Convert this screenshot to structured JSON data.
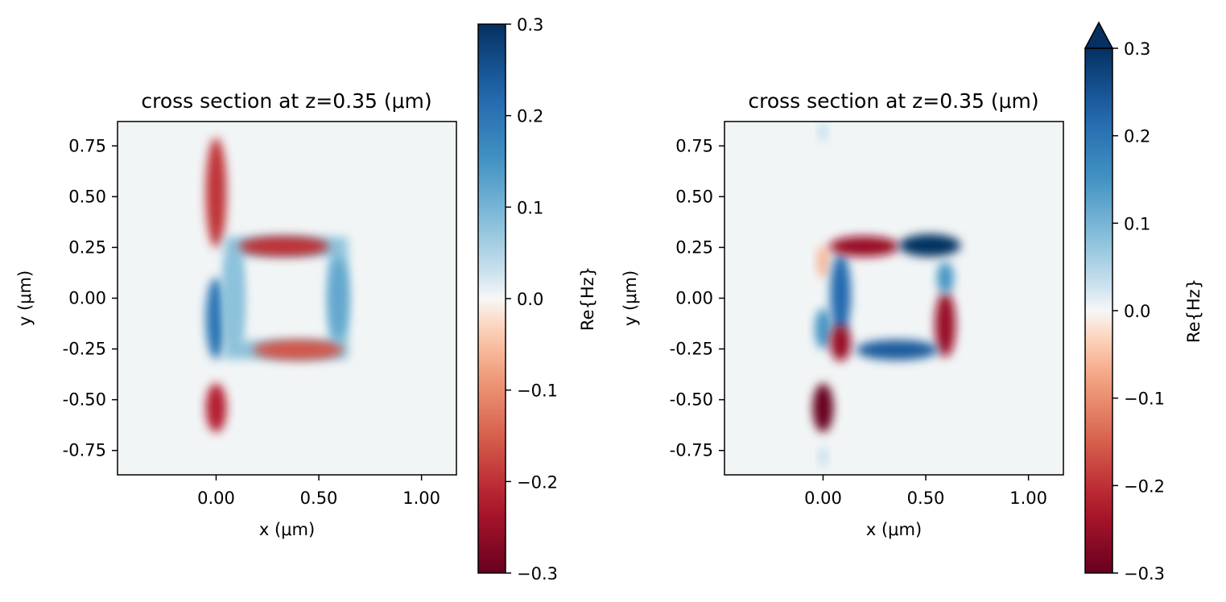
{
  "chart_data": [
    {
      "type": "heatmap",
      "title": "cross section at z=0.35 (μm)",
      "xlabel": "x (μm)",
      "ylabel": "y (μm)",
      "xlim": [
        -0.48,
        1.17
      ],
      "ylim": [
        -0.87,
        0.87
      ],
      "x_ticks": [
        0.0,
        0.5,
        1.0
      ],
      "x_tick_labels": [
        "0.00",
        "0.50",
        "1.00"
      ],
      "y_ticks": [
        0.75,
        0.5,
        0.25,
        0.0,
        -0.25,
        -0.5,
        -0.75
      ],
      "y_tick_labels": [
        "0.75",
        "0.50",
        "0.25",
        "0.00",
        "-0.25",
        "-0.50",
        "-0.75"
      ],
      "colorbar": {
        "label": "Re{Hz}",
        "range": [
          -0.3,
          0.3
        ],
        "ticks": [
          0.3,
          0.2,
          0.1,
          0.0,
          -0.1,
          -0.2,
          -0.3
        ],
        "tick_labels": [
          "0.3",
          "0.2",
          "0.1",
          "0.0",
          "−0.1",
          "−0.2",
          "−0.3"
        ],
        "colormap": "RdBu",
        "extend": "neither"
      },
      "features": [
        {
          "shape": "ellipse",
          "cx": 0.0,
          "cy": 0.52,
          "rx": 0.05,
          "ry": 0.27,
          "value": -0.2
        },
        {
          "shape": "ellipse",
          "cx": 0.0,
          "cy": -0.1,
          "rx": 0.05,
          "ry": 0.2,
          "value": 0.2
        },
        {
          "shape": "ellipse",
          "cx": 0.0,
          "cy": -0.54,
          "rx": 0.05,
          "ry": 0.12,
          "value": -0.22
        },
        {
          "shape": "ring",
          "x0": 0.04,
          "x1": 0.64,
          "y0": -0.3,
          "y1": 0.3,
          "inner_x0": 0.13,
          "inner_x1": 0.55,
          "inner_y0": -0.21,
          "inner_y1": 0.21,
          "value": 0.08
        },
        {
          "shape": "ellipse",
          "cx": 0.33,
          "cy": 0.255,
          "rx": 0.22,
          "ry": 0.05,
          "value": -0.2
        },
        {
          "shape": "ellipse",
          "cx": 0.4,
          "cy": -0.255,
          "rx": 0.22,
          "ry": 0.05,
          "value": -0.16
        },
        {
          "shape": "ellipse",
          "cx": 0.595,
          "cy": 0.0,
          "rx": 0.05,
          "ry": 0.2,
          "value": 0.12
        },
        {
          "shape": "ellipse",
          "cx": 0.085,
          "cy": 0.0,
          "rx": 0.05,
          "ry": 0.22,
          "value": 0.08
        }
      ]
    },
    {
      "type": "heatmap",
      "title": "cross section at z=0.35 (μm)",
      "xlabel": "x (μm)",
      "ylabel": "y (μm)",
      "xlim": [
        -0.48,
        1.17
      ],
      "ylim": [
        -0.87,
        0.87
      ],
      "x_ticks": [
        0.0,
        0.5,
        1.0
      ],
      "x_tick_labels": [
        "0.00",
        "0.50",
        "1.00"
      ],
      "y_ticks": [
        0.75,
        0.5,
        0.25,
        0.0,
        -0.25,
        -0.5,
        -0.75
      ],
      "y_tick_labels": [
        "0.75",
        "0.50",
        "0.25",
        "0.00",
        "-0.25",
        "-0.50",
        "-0.75"
      ],
      "colorbar": {
        "label": "Re{Hz}",
        "range": [
          -0.3,
          0.3
        ],
        "ticks": [
          0.3,
          0.2,
          0.1,
          0.0,
          -0.1,
          -0.2,
          -0.3
        ],
        "tick_labels": [
          "0.3",
          "0.2",
          "0.1",
          "0.0",
          "−0.1",
          "−0.2",
          "−0.3"
        ],
        "colormap": "RdBu",
        "extend": "max"
      },
      "features": [
        {
          "shape": "ellipse",
          "cx": 0.0,
          "cy": -0.54,
          "rx": 0.05,
          "ry": 0.12,
          "value": -0.3
        },
        {
          "shape": "ellipse",
          "cx": 0.0,
          "cy": -0.15,
          "rx": 0.04,
          "ry": 0.1,
          "value": 0.15
        },
        {
          "shape": "ellipse",
          "cx": 0.0,
          "cy": 0.18,
          "rx": 0.03,
          "ry": 0.08,
          "value": -0.06
        },
        {
          "shape": "ellipse",
          "cx": 0.085,
          "cy": 0.02,
          "rx": 0.05,
          "ry": 0.2,
          "value": 0.22
        },
        {
          "shape": "ellipse",
          "cx": 0.085,
          "cy": -0.22,
          "rx": 0.05,
          "ry": 0.09,
          "value": -0.25
        },
        {
          "shape": "ellipse",
          "cx": 0.2,
          "cy": 0.255,
          "rx": 0.17,
          "ry": 0.05,
          "value": -0.25
        },
        {
          "shape": "ellipse",
          "cx": 0.52,
          "cy": 0.26,
          "rx": 0.15,
          "ry": 0.055,
          "value": 0.3
        },
        {
          "shape": "ellipse",
          "cx": 0.595,
          "cy": -0.13,
          "rx": 0.05,
          "ry": 0.16,
          "value": -0.25
        },
        {
          "shape": "ellipse",
          "cx": 0.595,
          "cy": 0.1,
          "rx": 0.04,
          "ry": 0.08,
          "value": 0.15
        },
        {
          "shape": "ellipse",
          "cx": 0.36,
          "cy": -0.255,
          "rx": 0.2,
          "ry": 0.05,
          "value": 0.24
        },
        {
          "shape": "ellipse",
          "cx": 0.0,
          "cy": 0.82,
          "rx": 0.02,
          "ry": 0.05,
          "value": 0.04
        },
        {
          "shape": "ellipse",
          "cx": 0.0,
          "cy": -0.78,
          "rx": 0.02,
          "ry": 0.05,
          "value": 0.04
        }
      ]
    }
  ]
}
